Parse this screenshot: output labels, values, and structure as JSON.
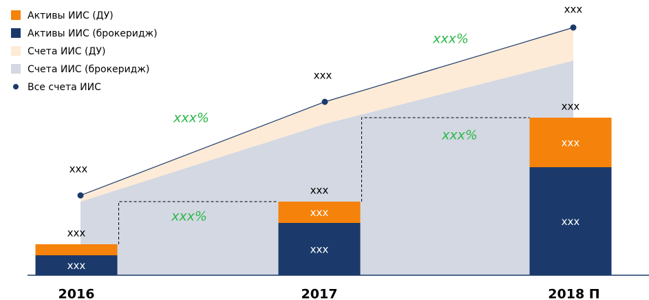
{
  "chart_data": {
    "type": "bar_area",
    "categories": [
      "2016",
      "2017",
      "2018 П"
    ],
    "series": [
      {
        "name": "Активы ИИС (ДУ)",
        "color": "#f5820a",
        "kind": "bar",
        "values": [
          16,
          31,
          72
        ],
        "value_labels": [
          null,
          "xxx",
          "xxx"
        ]
      },
      {
        "name": "Активы ИИС (брокеридж)",
        "color": "#1b3a6b",
        "kind": "bar",
        "values": [
          29,
          76,
          157
        ],
        "value_labels": [
          "xxx",
          "xxx",
          "xxx"
        ]
      },
      {
        "name": "Счета ИИС (ДУ)",
        "color": "#fdebd7",
        "kind": "area",
        "values": [
          9,
          32,
          48
        ]
      },
      {
        "name": "Счета ИИС (брокеридж)",
        "color": "#d3d8e2",
        "kind": "area",
        "values": [
          107,
          220,
          312
        ]
      },
      {
        "name": "Все счета ИИС",
        "color": "#1b3a6b",
        "kind": "line",
        "values": [
          116,
          252,
          360
        ],
        "value_labels": [
          "xxx",
          "xxx",
          "xxx"
        ]
      }
    ],
    "bar_total_labels": [
      "xxx",
      "xxx",
      "xxx"
    ],
    "annotations": [
      "xxx%",
      "xxx%",
      "xxx%",
      "xxx%"
    ],
    "ylim": [
      0,
      380
    ]
  }
}
